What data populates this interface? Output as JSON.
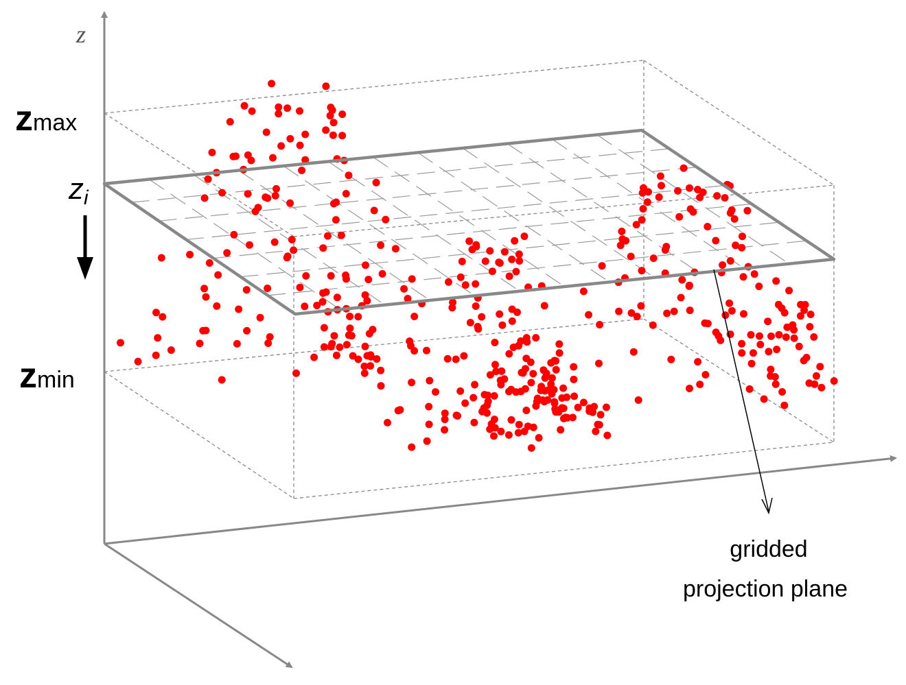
{
  "axis_label": "z",
  "levels": [
    {
      "symbol": "z",
      "subscript": "max"
    },
    {
      "symbol": "z",
      "subscript": "i"
    },
    {
      "symbol": "z",
      "subscript": "min"
    }
  ],
  "annotation": {
    "lines": [
      "gridded",
      "projection plane"
    ]
  }
}
